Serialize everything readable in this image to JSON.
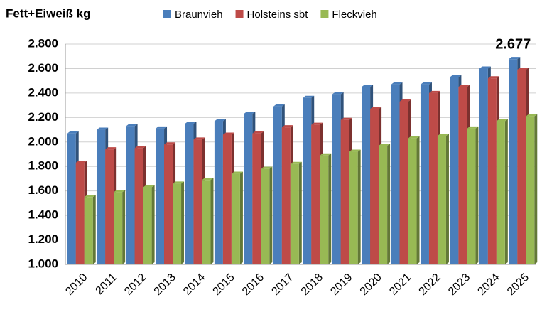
{
  "chart_data": {
    "type": "bar",
    "title": "Fett+Eiweiß kg",
    "categories": [
      "2010",
      "2011",
      "2012",
      "2013",
      "2014",
      "2015",
      "2016",
      "2017",
      "2018",
      "2019",
      "2020",
      "2021",
      "2022",
      "2023",
      "2024",
      "2025"
    ],
    "series": [
      {
        "name": "Braunvieh",
        "color": "#4a7ebb",
        "values": [
          2070,
          2100,
          2130,
          2110,
          2150,
          2170,
          2230,
          2290,
          2360,
          2390,
          2450,
          2470,
          2470,
          2530,
          2600,
          2677
        ],
        "value_labels": [
          null,
          null,
          null,
          null,
          null,
          null,
          null,
          null,
          null,
          null,
          null,
          null,
          null,
          null,
          null,
          "2.677"
        ]
      },
      {
        "name": "Holsteins sbt",
        "color": "#be4b48",
        "values": [
          1830,
          1940,
          1950,
          1980,
          2020,
          2060,
          2070,
          2120,
          2140,
          2180,
          2270,
          2330,
          2400,
          2450,
          2520,
          2590
        ]
      },
      {
        "name": "Fleckvieh",
        "color": "#98b954",
        "values": [
          1550,
          1590,
          1630,
          1660,
          1690,
          1740,
          1780,
          1820,
          1890,
          1920,
          1970,
          2030,
          2050,
          2110,
          2170,
          2210
        ]
      }
    ],
    "ylim": [
      1000,
      2800
    ],
    "yticks": [
      {
        "value": 1000,
        "label": "1.000"
      },
      {
        "value": 1200,
        "label": "1.200"
      },
      {
        "value": 1400,
        "label": "1.400"
      },
      {
        "value": 1600,
        "label": "1.600"
      },
      {
        "value": 1800,
        "label": "1.800"
      },
      {
        "value": 2000,
        "label": "2.000"
      },
      {
        "value": 2200,
        "label": "2.200"
      },
      {
        "value": 2400,
        "label": "2.400"
      },
      {
        "value": 2600,
        "label": "2.600"
      },
      {
        "value": 2800,
        "label": "2.800"
      }
    ],
    "grid": true
  }
}
